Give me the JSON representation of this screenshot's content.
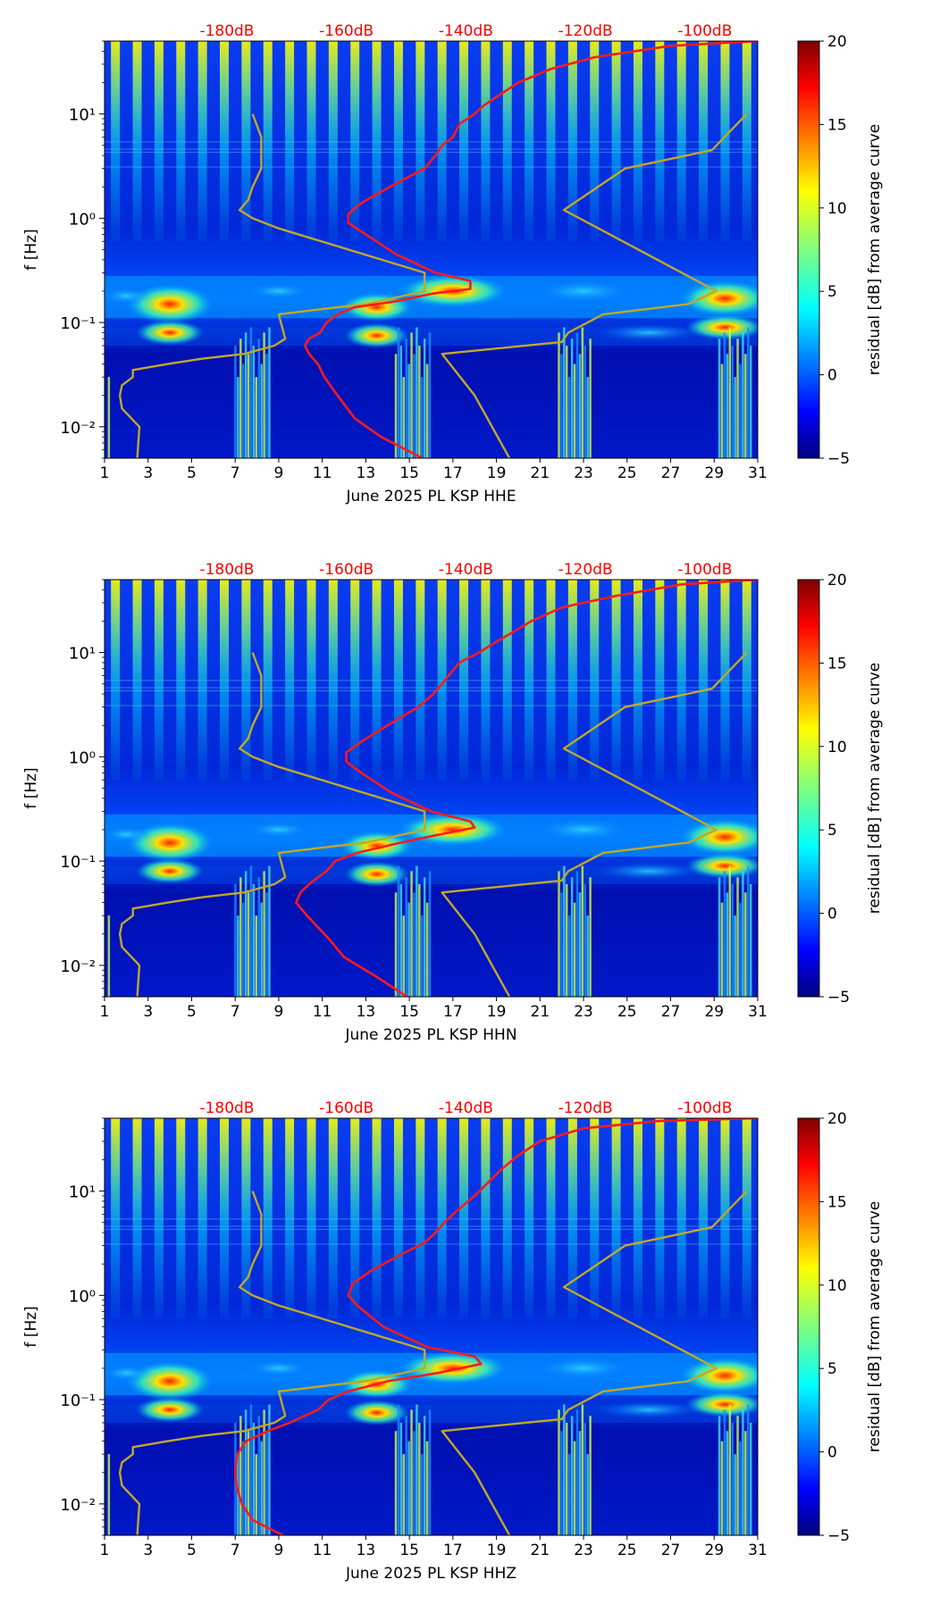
{
  "colors": {
    "noise_model": "#c0a828",
    "average_curve": "#ff1a1a",
    "db_label": "#ff0000",
    "colormap": [
      "#00007f",
      "#0000ff",
      "#007fff",
      "#00ffff",
      "#7fff7f",
      "#ffff00",
      "#ff7f00",
      "#ff0000",
      "#7f0000"
    ]
  },
  "chart_data": [
    {
      "type": "heatmap",
      "title": "",
      "xlabel": "June 2025 PL KSP  HHE",
      "ylabel": "f [Hz]",
      "x_range": [
        1,
        31
      ],
      "y_range": [
        0.005,
        50
      ],
      "y_scale": "log",
      "x_ticks": [
        1,
        3,
        5,
        7,
        9,
        11,
        13,
        15,
        17,
        19,
        21,
        23,
        25,
        27,
        29,
        31
      ],
      "x_tick_labels": [
        "1",
        "3",
        "5",
        "7",
        "9",
        "11",
        "13",
        "15",
        "17",
        "19",
        "21",
        "23",
        "25",
        "27",
        "29",
        "31"
      ],
      "y_tick_labels": [
        "10⁻²",
        "10⁻¹",
        "10⁰",
        "10¹"
      ],
      "top_tick_labels": [
        "-180dB",
        "-160dB",
        "-140dB",
        "-120dB",
        "-100dB"
      ],
      "colorbar": {
        "label": "residual [dB] from average curve",
        "range": [
          -5,
          20
        ],
        "ticks": [
          20,
          15,
          10,
          5,
          0,
          -5
        ],
        "tick_labels": [
          "20",
          "15",
          "10",
          "5",
          "0",
          "−5"
        ]
      },
      "series": [
        {
          "name": "noise model",
          "x": [
            7.8,
            8.2,
            8.2,
            7.8,
            7.6,
            7.2,
            7.8,
            9.0,
            15.7,
            15.7,
            13.0,
            11.7,
            9.0,
            9.3,
            8.8,
            7.4,
            5.5,
            3.9,
            2.3,
            2.3,
            1.8,
            1.7,
            1.8,
            2.6,
            2.5
          ],
          "y": [
            10,
            6,
            3,
            2,
            1.5,
            1.2,
            1.0,
            0.8,
            0.3,
            0.2,
            0.15,
            0.14,
            0.12,
            0.07,
            0.06,
            0.05,
            0.045,
            0.04,
            0.035,
            0.03,
            0.025,
            0.02,
            0.015,
            0.01,
            0.005
          ]
        },
        {
          "name": "noise model high",
          "x": [
            19.6,
            18.0,
            16.5,
            22.0,
            22.3,
            23.9,
            27.8,
            29.1,
            22.1,
            24.9,
            28.9,
            30.5
          ],
          "y": [
            0.005,
            0.02,
            0.05,
            0.065,
            0.08,
            0.12,
            0.15,
            0.2,
            1.2,
            3.0,
            4.5,
            10
          ]
        },
        {
          "name": "average curve",
          "x": [
            15.6,
            13.7,
            12.5,
            11.7,
            11.1,
            10.8,
            10.4,
            10.2,
            10.4,
            10.9,
            11.2,
            11.7,
            12.5,
            14.4,
            16.1,
            17.8,
            17.8,
            16.2,
            14.4,
            13.0,
            12.2,
            12.2,
            12.8,
            14.1,
            15.7,
            16.2,
            16.5,
            17.0,
            17.3,
            18.0,
            18.4,
            19.1,
            20.0,
            21.5,
            23.5,
            27.0,
            31.0
          ],
          "y": [
            0.005,
            0.008,
            0.012,
            0.02,
            0.03,
            0.04,
            0.05,
            0.06,
            0.07,
            0.08,
            0.1,
            0.12,
            0.14,
            0.16,
            0.19,
            0.21,
            0.25,
            0.3,
            0.45,
            0.7,
            0.9,
            1.1,
            1.4,
            2.0,
            3.0,
            4.0,
            5.0,
            6.0,
            8.0,
            10,
            12,
            15,
            20,
            27,
            35,
            45,
            50
          ]
        }
      ]
    },
    {
      "type": "heatmap",
      "title": "",
      "xlabel": "June 2025 PL KSP  HHN",
      "ylabel": "f [Hz]",
      "x_range": [
        1,
        31
      ],
      "y_range": [
        0.005,
        50
      ],
      "y_scale": "log",
      "x_ticks": [
        1,
        3,
        5,
        7,
        9,
        11,
        13,
        15,
        17,
        19,
        21,
        23,
        25,
        27,
        29,
        31
      ],
      "x_tick_labels": [
        "1",
        "3",
        "5",
        "7",
        "9",
        "11",
        "13",
        "15",
        "17",
        "19",
        "21",
        "23",
        "25",
        "27",
        "29",
        "31"
      ],
      "y_tick_labels": [
        "10⁻²",
        "10⁻¹",
        "10⁰",
        "10¹"
      ],
      "top_tick_labels": [
        "-180dB",
        "-160dB",
        "-140dB",
        "-120dB",
        "-100dB"
      ],
      "colorbar": {
        "label": "residual [dB] from average curve",
        "range": [
          -5,
          20
        ],
        "ticks": [
          20,
          15,
          10,
          5,
          0,
          -5
        ],
        "tick_labels": [
          "20",
          "15",
          "10",
          "5",
          "0",
          "−5"
        ]
      },
      "series": [
        {
          "name": "noise model",
          "x": [
            7.8,
            8.2,
            8.2,
            7.8,
            7.6,
            7.2,
            7.8,
            9.0,
            15.7,
            15.7,
            13.0,
            11.7,
            9.0,
            9.3,
            8.8,
            7.4,
            5.5,
            3.9,
            2.3,
            2.3,
            1.8,
            1.7,
            1.8,
            2.6,
            2.5
          ],
          "y": [
            10,
            6,
            3,
            2,
            1.5,
            1.2,
            1.0,
            0.8,
            0.3,
            0.2,
            0.15,
            0.14,
            0.12,
            0.07,
            0.06,
            0.05,
            0.045,
            0.04,
            0.035,
            0.03,
            0.025,
            0.02,
            0.015,
            0.01,
            0.005
          ]
        },
        {
          "name": "noise model high",
          "x": [
            19.6,
            18.0,
            16.5,
            22.0,
            22.3,
            23.9,
            27.8,
            29.1,
            22.1,
            24.9,
            28.9,
            30.5
          ],
          "y": [
            0.005,
            0.02,
            0.05,
            0.065,
            0.08,
            0.12,
            0.15,
            0.2,
            1.2,
            3.0,
            4.5,
            10
          ]
        },
        {
          "name": "average curve",
          "x": [
            14.9,
            13.4,
            12.0,
            11.3,
            10.3,
            9.8,
            10.0,
            10.4,
            10.8,
            11.2,
            11.6,
            12.6,
            14.6,
            16.4,
            18.0,
            17.8,
            16.0,
            14.2,
            12.8,
            12.1,
            12.1,
            12.8,
            14.0,
            15.4,
            16.1,
            16.5,
            16.8,
            17.3,
            18.2,
            18.8,
            19.6,
            20.6,
            22.0,
            24.5,
            27.5,
            31.0
          ],
          "y": [
            0.005,
            0.008,
            0.012,
            0.018,
            0.03,
            0.04,
            0.05,
            0.06,
            0.07,
            0.08,
            0.1,
            0.12,
            0.15,
            0.18,
            0.21,
            0.24,
            0.3,
            0.45,
            0.7,
            0.9,
            1.1,
            1.4,
            2.0,
            3.0,
            4.0,
            5.0,
            6.0,
            8.0,
            10,
            12,
            15,
            20,
            27,
            35,
            45,
            50
          ]
        }
      ]
    },
    {
      "type": "heatmap",
      "title": "",
      "xlabel": "June 2025 PL KSP  HHZ",
      "ylabel": "f [Hz]",
      "x_range": [
        1,
        31
      ],
      "y_range": [
        0.005,
        50
      ],
      "y_scale": "log",
      "x_ticks": [
        1,
        3,
        5,
        7,
        9,
        11,
        13,
        15,
        17,
        19,
        21,
        23,
        25,
        27,
        29,
        31
      ],
      "x_tick_labels": [
        "1",
        "3",
        "5",
        "7",
        "9",
        "11",
        "13",
        "15",
        "17",
        "19",
        "21",
        "23",
        "25",
        "27",
        "29",
        "31"
      ],
      "y_tick_labels": [
        "10⁻²",
        "10⁻¹",
        "10⁰",
        "10¹"
      ],
      "top_tick_labels": [
        "-180dB",
        "-160dB",
        "-140dB",
        "-120dB",
        "-100dB"
      ],
      "colorbar": {
        "label": "residual [dB] from average curve",
        "range": [
          -5,
          20
        ],
        "ticks": [
          20,
          15,
          10,
          5,
          0,
          -5
        ],
        "tick_labels": [
          "20",
          "15",
          "10",
          "5",
          "0",
          "−5"
        ]
      },
      "series": [
        {
          "name": "noise model",
          "x": [
            7.8,
            8.2,
            8.2,
            7.8,
            7.6,
            7.2,
            7.8,
            9.0,
            15.7,
            15.7,
            13.0,
            11.7,
            9.0,
            9.3,
            8.8,
            7.4,
            5.5,
            3.9,
            2.3,
            2.3,
            1.8,
            1.7,
            1.8,
            2.6,
            2.5
          ],
          "y": [
            10,
            6,
            3,
            2,
            1.5,
            1.2,
            1.0,
            0.8,
            0.3,
            0.2,
            0.15,
            0.14,
            0.12,
            0.07,
            0.06,
            0.05,
            0.045,
            0.04,
            0.035,
            0.03,
            0.025,
            0.02,
            0.015,
            0.01,
            0.005
          ]
        },
        {
          "name": "noise model high",
          "x": [
            19.6,
            18.0,
            16.5,
            22.0,
            22.3,
            23.9,
            27.8,
            29.1,
            22.1,
            24.9,
            28.9,
            30.5
          ],
          "y": [
            0.005,
            0.02,
            0.05,
            0.065,
            0.08,
            0.12,
            0.15,
            0.2,
            1.2,
            3.0,
            4.5,
            10
          ]
        },
        {
          "name": "average curve",
          "x": [
            9.2,
            7.8,
            7.3,
            7.1,
            7.0,
            7.1,
            7.5,
            8.5,
            9.5,
            10.8,
            11.3,
            12.2,
            14.0,
            16.3,
            18.3,
            18.0,
            15.8,
            13.8,
            12.6,
            12.2,
            12.4,
            13.2,
            14.5,
            15.7,
            16.2,
            16.6,
            17.2,
            18.0,
            18.6,
            19.2,
            20.0,
            21.0,
            23.0,
            26.5,
            31.0
          ],
          "y": [
            0.005,
            0.007,
            0.01,
            0.014,
            0.02,
            0.03,
            0.04,
            0.05,
            0.06,
            0.08,
            0.1,
            0.12,
            0.15,
            0.18,
            0.22,
            0.26,
            0.32,
            0.5,
            0.8,
            1.0,
            1.3,
            1.7,
            2.4,
            3.2,
            4.0,
            5.0,
            6.5,
            9.0,
            12,
            16,
            22,
            30,
            40,
            47,
            50
          ]
        }
      ]
    }
  ]
}
